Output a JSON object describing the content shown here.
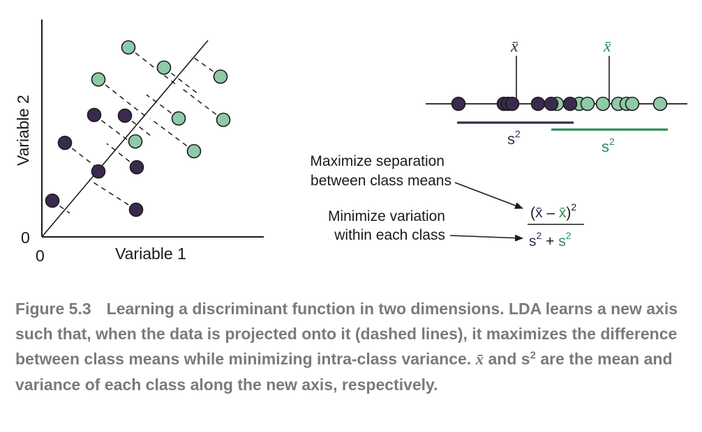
{
  "colors": {
    "class_a": "#3b2a4f",
    "class_b": "#8fcaa8",
    "class_b_text": "#2e8b57",
    "ink": "#1a1a1a",
    "caption": "#7a7a7a"
  },
  "scatter": {
    "xlabel": "Variable 1",
    "ylabel": "Variable 2",
    "x_origin": "0",
    "y_origin": "0"
  },
  "projection": {
    "mean_symbol_a": "x̄",
    "mean_symbol_b": "x̄",
    "var_symbol_a": "s",
    "var_symbol_b": "s",
    "exponent": "2"
  },
  "annotations": {
    "maximize_line1": "Maximize separation",
    "maximize_line2": "between class means",
    "minimize_line1": "Minimize variation",
    "minimize_line2": "within each class"
  },
  "formula": {
    "open": "(",
    "mean_a": "x̄",
    "minus": " – ",
    "mean_b": "x̄",
    "close": ")",
    "exp": "2",
    "var_a": "s",
    "plus": " + ",
    "var_b": "s"
  },
  "caption": {
    "figure_label": "Figure 5.3",
    "text_part1": "Learning a discriminant function in two dimensions. LDA learns a new axis such that, when the data is projected onto it (dashed lines), it maximizes the difference between class means while minimizing intra-class variance.",
    "symbol_mean": "x̄",
    "text_and": "and",
    "symbol_var": "s",
    "symbol_exp": "2",
    "text_part2": "are the mean and variance of each class along the new axis, respectively."
  }
}
